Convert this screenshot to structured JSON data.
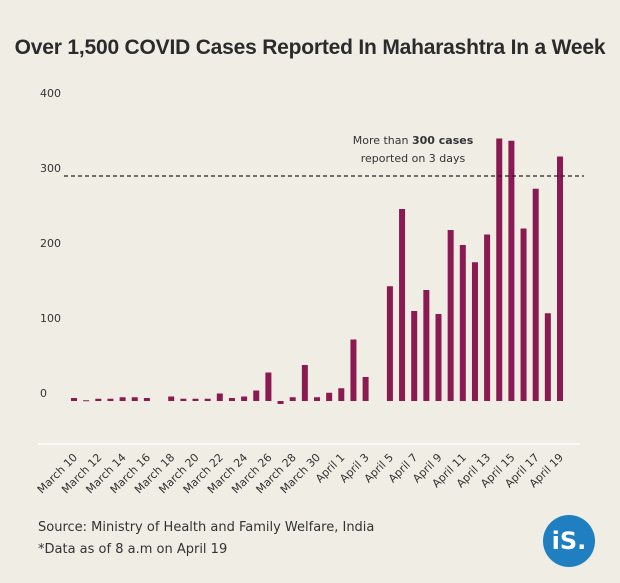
{
  "title": "Over 1,500 COVID Cases Reported In Maharashtra In a Week",
  "annotation": {
    "line1_pre": "More than ",
    "line1_bold": "300 cases",
    "line2": "reported on 3 days",
    "reference_value": 300
  },
  "source": "Source: Ministry of Health and Family Welfare, India",
  "footnote": "*Data as of 8 a.m on April 19",
  "logo_text": "iS.",
  "colors": {
    "bar": "#8b1a52",
    "background": "#efede4",
    "logo": "#1f7fc0"
  },
  "chart_data": {
    "type": "bar",
    "title": "Over 1,500 COVID Cases Reported In Maharashtra In a Week",
    "xlabel": "",
    "ylabel": "",
    "ylim": [
      -60,
      400
    ],
    "yticks": [
      0,
      100,
      200,
      300,
      400
    ],
    "grid": false,
    "tick_labels_shown": [
      "March 10",
      "March 12",
      "March 14",
      "March 16",
      "March 18",
      "March 20",
      "March 22",
      "March 24",
      "March 26",
      "March 28",
      "March 30",
      "April 1",
      "April 3",
      "April 5",
      "April 7",
      "April 9",
      "April 11",
      "April 13",
      "April 15",
      "April 17",
      "April 19"
    ],
    "categories": [
      "March 10",
      "March 11",
      "March 12",
      "March 13",
      "March 14",
      "March 15",
      "March 16",
      "March 17",
      "March 18",
      "March 19",
      "March 20",
      "March 21",
      "March 22",
      "March 23",
      "March 24",
      "March 25",
      "March 26",
      "March 27",
      "March 28",
      "March 29",
      "March 30",
      "March 31",
      "April 1",
      "April 2",
      "April 3",
      "April 4",
      "April 5",
      "April 6",
      "April 7",
      "April 8",
      "April 9",
      "April 10",
      "April 11",
      "April 12",
      "April 13",
      "April 14",
      "April 15",
      "April 16",
      "April 17",
      "April 18",
      "April 19"
    ],
    "values": [
      4,
      1,
      3,
      3,
      5,
      5,
      4,
      0,
      6,
      3,
      3,
      3,
      10,
      4,
      6,
      14,
      38,
      -4,
      5,
      48,
      5,
      11,
      17,
      82,
      32,
      0,
      153,
      256,
      120,
      148,
      116,
      228,
      208,
      185,
      222,
      350,
      347,
      230,
      283,
      117,
      326
    ]
  }
}
